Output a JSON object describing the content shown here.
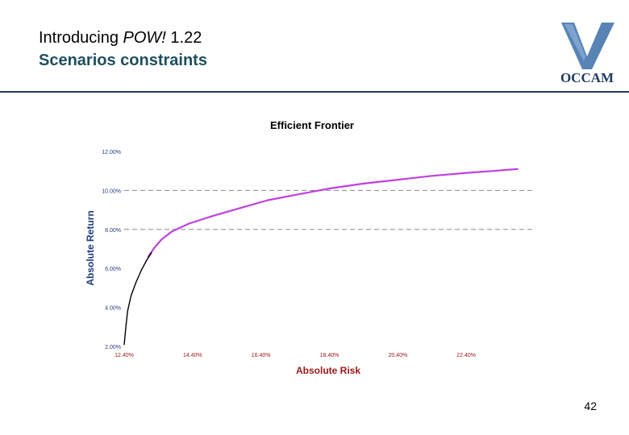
{
  "slide": {
    "title_prefix": "Introducing ",
    "title_italic": "POW!",
    "title_suffix": " 1.22",
    "subtitle": "Scenarios constraints",
    "page_number": "42",
    "logo_text": "OCCAM"
  },
  "colors": {
    "subtitle": "#1f4e5f",
    "rule": "#1f3a5f",
    "frontier": "#c040e0",
    "frontier_base": "#000000",
    "axis_label": "#a01818",
    "logo_blue": "#3a6ea8"
  },
  "chart_data": {
    "type": "line",
    "title": "Efficient Frontier",
    "xlabel": "Absolute Risk",
    "ylabel": "Absolute Return",
    "xlim": [
      12.4,
      24.4
    ],
    "ylim": [
      2.0,
      12.0
    ],
    "x_ticks": [
      "12.40%",
      "14.40%",
      "16.40%",
      "18.40%",
      "20.40%",
      "22.40%"
    ],
    "x_tick_values": [
      12.4,
      14.4,
      16.4,
      18.4,
      20.4,
      22.4
    ],
    "y_ticks": [
      "2.00%",
      "4.00%",
      "6.00%",
      "8.00%",
      "10.00%",
      "12.00%"
    ],
    "y_tick_values": [
      2,
      4,
      6,
      8,
      10,
      12
    ],
    "gridlines_y": [
      8,
      10
    ],
    "series": [
      {
        "name": "",
        "color": "#c040e0",
        "x": [
          13.1,
          13.3,
          13.5,
          13.8,
          14.3,
          15.0,
          15.8,
          16.6,
          17.5,
          18.4,
          19.4,
          20.4,
          21.4,
          22.4,
          23.2,
          23.9
        ],
        "y": [
          6.6,
          7.1,
          7.5,
          7.9,
          8.3,
          8.7,
          9.1,
          9.5,
          9.8,
          10.1,
          10.35,
          10.55,
          10.75,
          10.9,
          11.0,
          11.1
        ]
      },
      {
        "name": "",
        "color": "#000000",
        "x": [
          12.4,
          12.45,
          12.5,
          12.6,
          12.75,
          12.9,
          13.05,
          13.2
        ],
        "y": [
          2.1,
          3.0,
          3.8,
          4.6,
          5.3,
          5.9,
          6.4,
          6.8
        ]
      }
    ]
  }
}
